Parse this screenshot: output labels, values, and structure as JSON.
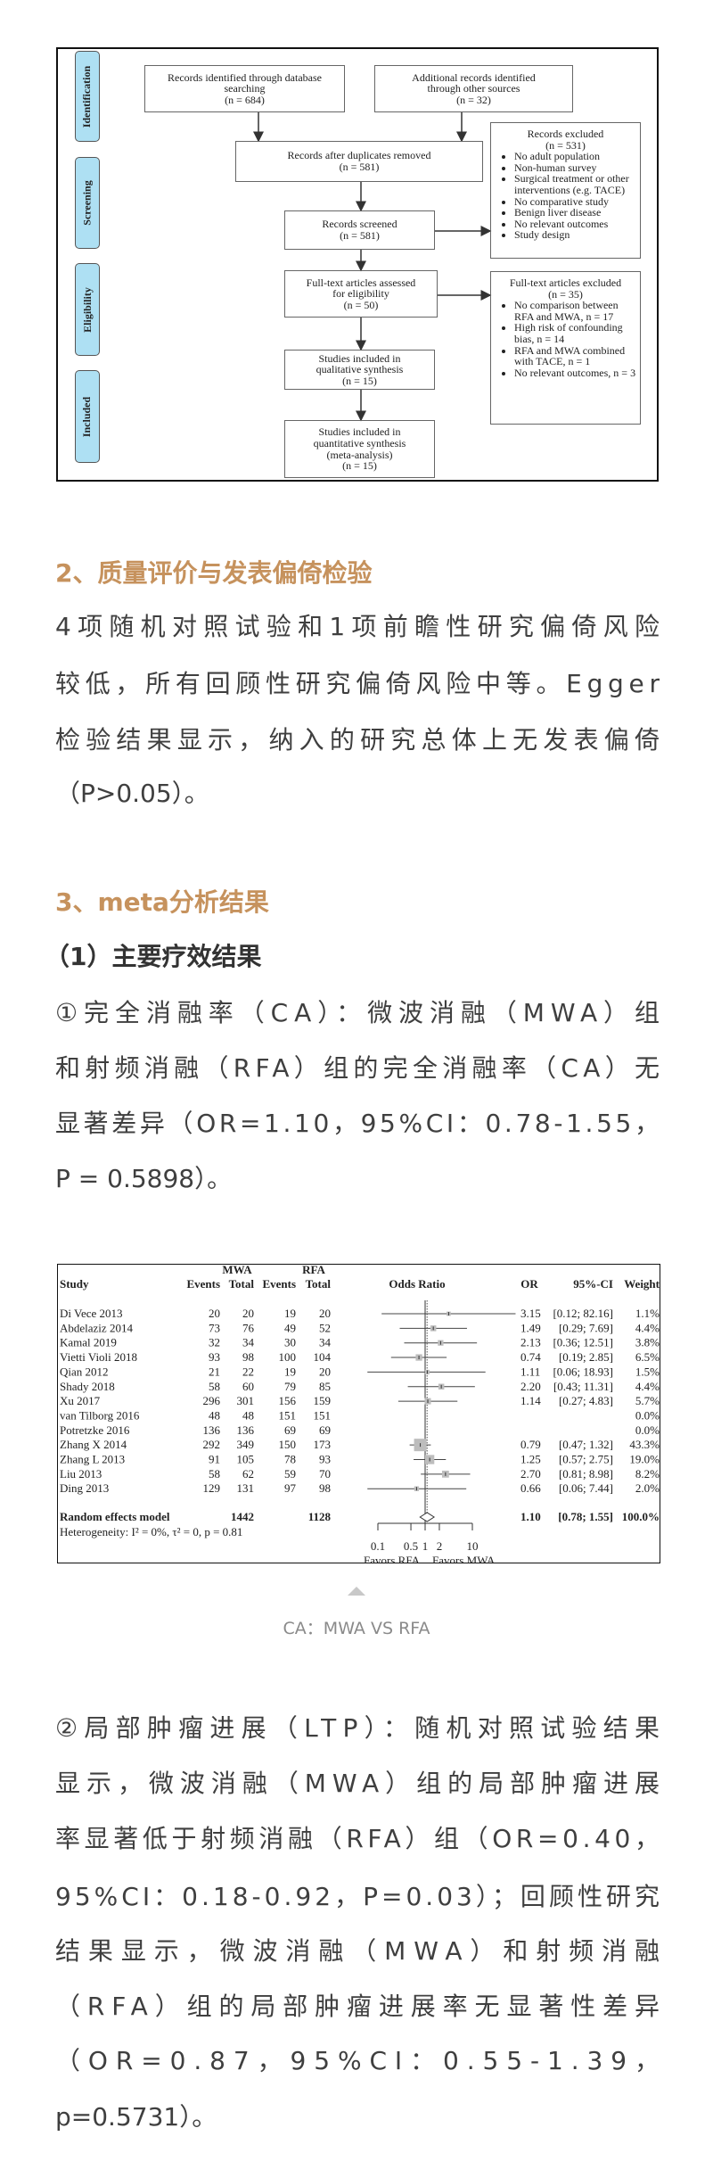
{
  "prisma": {
    "stages": [
      "Identification",
      "Screening",
      "Eligibility",
      "Included"
    ],
    "db_records": [
      "Records identified through database",
      "searching",
      "(n = 684)"
    ],
    "other_records": [
      "Additional records identified",
      "through other sources",
      "(n = 32)"
    ],
    "after_duplicates": [
      "Records after duplicates removed",
      "(n = 581)"
    ],
    "screened": [
      "Records screened",
      "(n = 581)"
    ],
    "records_excluded": {
      "title": [
        "Records excluded",
        "(n = 531)"
      ],
      "items": [
        "No adult population",
        "Non-human survey",
        "Surgical treatment or other interventions (e.g. TACE)",
        "No comparative study",
        "Benign liver disease",
        "No relevant outcomes",
        "Study design"
      ]
    },
    "fulltext_assessed": [
      "Full-text articles assessed",
      "for eligibility",
      "(n = 50)"
    ],
    "fulltext_excluded": {
      "title": [
        "Full-text articles excluded",
        "(n = 35)"
      ],
      "items": [
        "No comparison between RFA and MWA, n = 17",
        "High risk of confounding bias, n = 14",
        "RFA and MWA combined with TACE, n = 1",
        "No relevant outcomes, n = 3"
      ]
    },
    "qualitative": [
      "Studies included in",
      "qualitative synthesis",
      "(n = 15)"
    ],
    "quantitative": [
      "Studies included in",
      "quantitative synthesis",
      "(meta-analysis)",
      "(n = 15)"
    ],
    "stage_color": "#aee0f3"
  },
  "section2": {
    "heading": "2、质量评价与发表偏倚检验",
    "lines": [
      "4项随机对照试验和1项前瞻性研究偏倚风险",
      "较低，所有回顾性研究偏倚风险中等。Egger",
      "检验结果显示，纳入的研究总体上无发表偏倚",
      "（P>0.05）。"
    ]
  },
  "section3": {
    "heading": "3、meta分析结果",
    "subheading": "（1）主要疗效结果",
    "ca_lines": [
      "①完全消融率（CA）：微波消融（MWA）组",
      "和射频消融（RFA）组的完全消融率（CA）无",
      "显著差异（OR=1.10，95%CI：0.78-1.55，",
      "P = 0.5898）。"
    ],
    "caption": "CA：MWA VS RFA",
    "ltp_lines": [
      "②局部肿瘤进展（LTP）：随机对照试验结果",
      "显示，微波消融（MWA）组的局部肿瘤进展",
      "率显著低于射频消融（RFA）组（OR=0.40，",
      "95%CI：0.18-0.92，P=0.03）；回顾性研究",
      "结果显示，微波消融（MWA）和射频消融",
      "（RFA）组的局部肿瘤进展率无显著性差异",
      "（OR=0.87，95%CI：0.55-1.39，",
      "p=0.5731）。"
    ]
  },
  "colors": {
    "accent": "#c6925d",
    "text": "#3f3f3f"
  },
  "chart_data": {
    "type": "forest",
    "headers": {
      "study": "Study",
      "group1": "MWA",
      "group2": "RFA",
      "events": "Events",
      "total": "Total",
      "plot": "Odds Ratio",
      "or": "OR",
      "ci": "95%-CI",
      "weight": "Weight"
    },
    "rows": [
      {
        "study": "Di Vece  2013",
        "e1": 20,
        "n1": 20,
        "e2": 19,
        "n2": 20,
        "or": 3.15,
        "lo": 0.12,
        "hi": 82.16,
        "or_text": "3.15",
        "ci_text": "[0.12; 82.16]",
        "weight": "1.1%"
      },
      {
        "study": "Abdelaziz  2014",
        "e1": 73,
        "n1": 76,
        "e2": 49,
        "n2": 52,
        "or": 1.49,
        "lo": 0.29,
        "hi": 7.69,
        "or_text": "1.49",
        "ci_text": "[0.29;  7.69]",
        "weight": "4.4%"
      },
      {
        "study": "Kamal  2019",
        "e1": 32,
        "n1": 34,
        "e2": 30,
        "n2": 34,
        "or": 2.13,
        "lo": 0.36,
        "hi": 12.51,
        "or_text": "2.13",
        "ci_text": "[0.36; 12.51]",
        "weight": "3.8%"
      },
      {
        "study": "Vietti  Violi  2018",
        "e1": 93,
        "n1": 98,
        "e2": 100,
        "n2": 104,
        "or": 0.74,
        "lo": 0.19,
        "hi": 2.85,
        "or_text": "0.74",
        "ci_text": "[0.19;  2.85]",
        "weight": "6.5%"
      },
      {
        "study": "Qian  2012",
        "e1": 21,
        "n1": 22,
        "e2": 19,
        "n2": 20,
        "or": 1.11,
        "lo": 0.06,
        "hi": 18.93,
        "or_text": "1.11",
        "ci_text": "[0.06; 18.93]",
        "weight": "1.5%"
      },
      {
        "study": "Shady  2018",
        "e1": 58,
        "n1": 60,
        "e2": 79,
        "n2": 85,
        "or": 2.2,
        "lo": 0.43,
        "hi": 11.31,
        "or_text": "2.20",
        "ci_text": "[0.43; 11.31]",
        "weight": "4.4%"
      },
      {
        "study": "Xu  2017",
        "e1": 296,
        "n1": 301,
        "e2": 156,
        "n2": 159,
        "or": 1.14,
        "lo": 0.27,
        "hi": 4.83,
        "or_text": "1.14",
        "ci_text": "[0.27;  4.83]",
        "weight": "5.7%"
      },
      {
        "study": "van Tilborg  2016",
        "e1": 48,
        "n1": 48,
        "e2": 151,
        "n2": 151,
        "or": null,
        "lo": null,
        "hi": null,
        "or_text": "",
        "ci_text": "",
        "weight": "0.0%"
      },
      {
        "study": "Potretzke  2016",
        "e1": 136,
        "n1": 136,
        "e2": 69,
        "n2": 69,
        "or": null,
        "lo": null,
        "hi": null,
        "or_text": "",
        "ci_text": "",
        "weight": "0.0%"
      },
      {
        "study": "Zhang X  2014",
        "e1": 292,
        "n1": 349,
        "e2": 150,
        "n2": 173,
        "or": 0.79,
        "lo": 0.47,
        "hi": 1.32,
        "or_text": "0.79",
        "ci_text": "[0.47;  1.32]",
        "weight": "43.3%"
      },
      {
        "study": "Zhang L  2013",
        "e1": 91,
        "n1": 105,
        "e2": 78,
        "n2": 93,
        "or": 1.25,
        "lo": 0.57,
        "hi": 2.75,
        "or_text": "1.25",
        "ci_text": "[0.57;  2.75]",
        "weight": "19.0%"
      },
      {
        "study": "Liu  2013",
        "e1": 58,
        "n1": 62,
        "e2": 59,
        "n2": 70,
        "or": 2.7,
        "lo": 0.81,
        "hi": 8.98,
        "or_text": "2.70",
        "ci_text": "[0.81;  8.98]",
        "weight": "8.2%"
      },
      {
        "study": "Ding  2013",
        "e1": 129,
        "n1": 131,
        "e2": 97,
        "n2": 98,
        "or": 0.66,
        "lo": 0.06,
        "hi": 7.44,
        "or_text": "0.66",
        "ci_text": "[0.06;  7.44]",
        "weight": "2.0%"
      }
    ],
    "pooled": {
      "label": "Random effects model",
      "n1": 1442,
      "n2": 1128,
      "or": 1.1,
      "lo": 0.78,
      "hi": 1.55,
      "or_text": "1.10",
      "ci_text": "[0.78;  1.55]",
      "weight": "100.0%"
    },
    "heterogeneity": "Heterogeneity: I² = 0%, τ² = 0, p = 0.81",
    "x_scale": "log",
    "x_ticks": [
      0.1,
      0.5,
      1,
      2,
      10
    ],
    "x_tick_labels": [
      "0.1",
      "0.5",
      "1",
      "2",
      "10"
    ],
    "xlim": [
      0.1,
      10
    ],
    "favors_left": "Favors RFA",
    "favors_right": "Favors MWA",
    "square_color": "#bdbdbd"
  }
}
